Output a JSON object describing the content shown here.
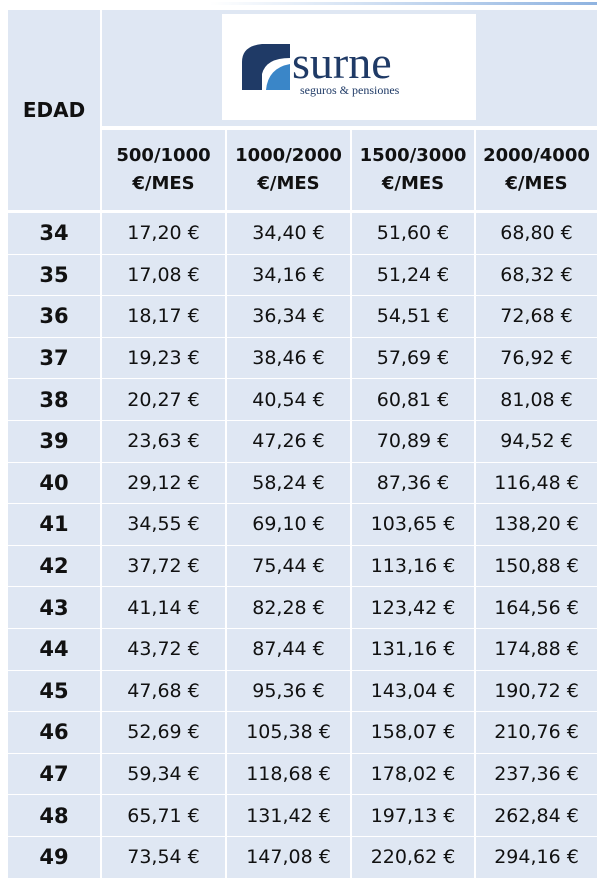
{
  "logo": {
    "name": "surne",
    "tagline": "seguros & pensiones"
  },
  "table": {
    "corner": "EDAD",
    "columns": [
      [
        "500/1000",
        "€/MES"
      ],
      [
        "1000/2000",
        "€/MES"
      ],
      [
        "1500/3000",
        "€/MES"
      ],
      [
        "2000/4000",
        "€/MES"
      ]
    ],
    "rows": [
      [
        "34",
        "17,20 €",
        "34,40 €",
        "51,60 €",
        "68,80 €"
      ],
      [
        "35",
        "17,08 €",
        "34,16 €",
        "51,24 €",
        "68,32 €"
      ],
      [
        "36",
        "18,17 €",
        "36,34 €",
        "54,51 €",
        "72,68 €"
      ],
      [
        "37",
        "19,23 €",
        "38,46 €",
        "57,69 €",
        "76,92 €"
      ],
      [
        "38",
        "20,27 €",
        "40,54 €",
        "60,81 €",
        "81,08 €"
      ],
      [
        "39",
        "23,63 €",
        "47,26 €",
        "70,89 €",
        "94,52 €"
      ],
      [
        "40",
        "29,12 €",
        "58,24 €",
        "87,36 €",
        "116,48 €"
      ],
      [
        "41",
        "34,55 €",
        "69,10 €",
        "103,65 €",
        "138,20 €"
      ],
      [
        "42",
        "37,72 €",
        "75,44 €",
        "113,16 €",
        "150,88 €"
      ],
      [
        "43",
        "41,14 €",
        "82,28 €",
        "123,42 €",
        "164,56 €"
      ],
      [
        "44",
        "43,72 €",
        "87,44 €",
        "131,16 €",
        "174,88 €"
      ],
      [
        "45",
        "47,68 €",
        "95,36 €",
        "143,04 €",
        "190,72 €"
      ],
      [
        "46",
        "52,69 €",
        "105,38 €",
        "158,07 €",
        "210,76 €"
      ],
      [
        "47",
        "59,34 €",
        "118,68 €",
        "178,02 €",
        "237,36 €"
      ],
      [
        "48",
        "65,71 €",
        "131,42 €",
        "197,13 €",
        "262,84 €"
      ],
      [
        "49",
        "73,54 €",
        "147,08 €",
        "220,62 €",
        "294,16 €"
      ]
    ]
  }
}
